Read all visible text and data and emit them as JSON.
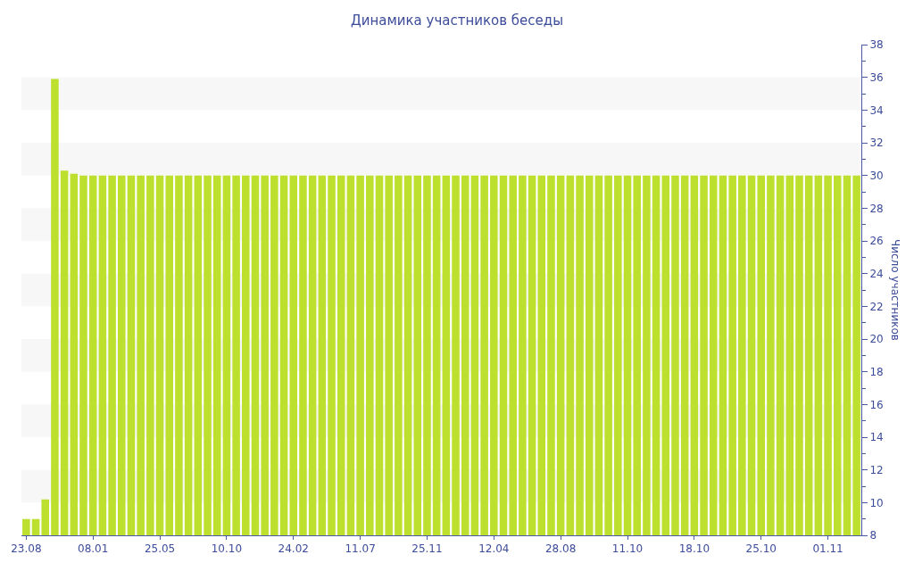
{
  "chart_data": {
    "type": "bar",
    "title": "Динамика участников беседы",
    "ylabel": "Число участников",
    "categories": [
      "23.08",
      null,
      null,
      null,
      null,
      null,
      null,
      "08.01",
      null,
      null,
      null,
      null,
      null,
      null,
      "25.05",
      null,
      null,
      null,
      null,
      null,
      null,
      "10.10",
      null,
      null,
      null,
      null,
      null,
      null,
      "24.02",
      null,
      null,
      null,
      null,
      null,
      null,
      "11.07",
      null,
      null,
      null,
      null,
      null,
      null,
      "25.11",
      null,
      null,
      null,
      null,
      null,
      null,
      "12.04",
      null,
      null,
      null,
      null,
      null,
      null,
      "28.08",
      null,
      null,
      null,
      null,
      null,
      null,
      "11.10",
      null,
      null,
      null,
      null,
      null,
      null,
      "18.10",
      null,
      null,
      null,
      null,
      null,
      null,
      "25.10",
      null,
      null,
      null,
      null,
      null,
      null,
      "01.11",
      null,
      null,
      null
    ],
    "values": [
      9,
      9,
      10.2,
      35.9,
      30.3,
      30.1,
      30,
      30,
      30,
      30,
      30,
      30,
      30,
      30,
      30,
      30,
      30,
      30,
      30,
      30,
      30,
      30,
      30,
      30,
      30,
      30,
      30,
      30,
      30,
      30,
      30,
      30,
      30,
      30,
      30,
      30,
      30,
      30,
      30,
      30,
      30,
      30,
      30,
      30,
      30,
      30,
      30,
      30,
      30,
      30,
      30,
      30,
      30,
      30,
      30,
      30,
      30,
      30,
      30,
      30,
      30,
      30,
      30,
      30,
      30,
      30,
      30,
      30,
      30,
      30,
      30,
      30,
      30,
      30,
      30,
      30,
      30,
      30,
      30,
      30,
      30,
      30,
      30,
      30,
      30,
      30,
      30,
      30
    ],
    "color": "#bde02f",
    "ylim": [
      8,
      38
    ],
    "yticks": [
      8,
      10,
      12,
      14,
      16,
      18,
      20,
      22,
      24,
      26,
      28,
      30,
      32,
      34,
      36,
      38
    ],
    "bands": [
      {
        "axis": "y",
        "from": 10,
        "to": 12,
        "color": "#f7f7f7"
      },
      {
        "axis": "y",
        "from": 14,
        "to": 16,
        "color": "#f7f7f7"
      },
      {
        "axis": "y",
        "from": 18,
        "to": 20,
        "color": "#f7f7f7"
      },
      {
        "axis": "y",
        "from": 22,
        "to": 24,
        "color": "#f7f7f7"
      },
      {
        "axis": "y",
        "from": 26,
        "to": 28,
        "color": "#f7f7f7"
      },
      {
        "axis": "y",
        "from": 30,
        "to": 32,
        "color": "#f7f7f7"
      },
      {
        "axis": "y",
        "from": 34,
        "to": 36,
        "color": "#f7f7f7"
      }
    ],
    "grid": false
  }
}
